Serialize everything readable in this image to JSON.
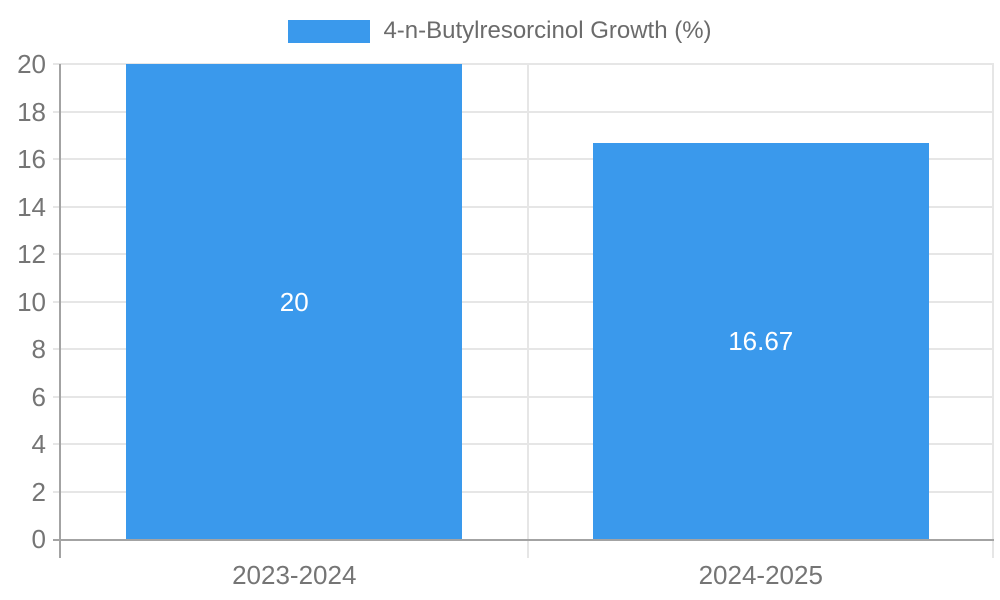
{
  "chart_data": {
    "type": "bar",
    "title": "4-n-Butylresorcinol Growth (%)",
    "categories": [
      "2023-2024",
      "2024-2025"
    ],
    "values": [
      20,
      16.67
    ],
    "bar_labels": [
      "20",
      "16.67"
    ],
    "xlabel": "",
    "ylabel": "",
    "ylim": [
      0,
      20
    ],
    "ytick_step": 2,
    "yticks": [
      0,
      2,
      4,
      6,
      8,
      10,
      12,
      14,
      16,
      18,
      20
    ],
    "grid": true,
    "legend_position": "top",
    "bar_width_ratio": 0.72
  },
  "legend": {
    "label": "4-n-Butylresorcinol Growth (%)",
    "swatch_icon": "legend-color-swatch"
  },
  "colors": {
    "bar": "#3A99EC",
    "bar_label_text": "#FFFFFF",
    "grid_line": "#E6E6E6",
    "axis_line": "#A3A3A3",
    "tick_text": "#757575",
    "legend_text": "#6B6B6B"
  }
}
